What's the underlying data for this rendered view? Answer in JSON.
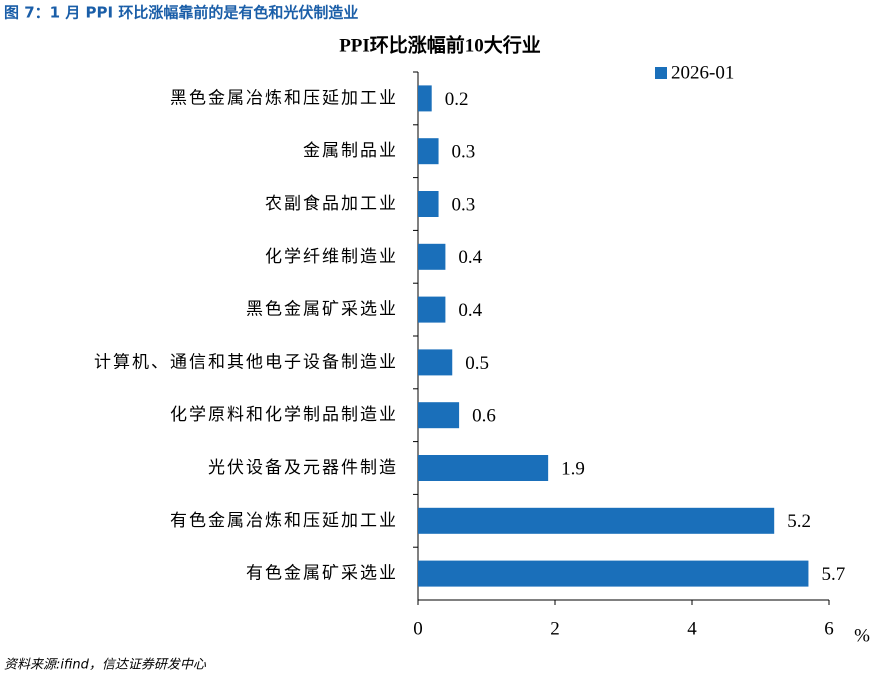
{
  "caption": "图 7：1 月 PPI 环比涨幅靠前的是有色和光伏制造业",
  "source": "资料来源:ifind，信达证券研发中心",
  "chart_data": {
    "type": "hbar",
    "title": "PPI环比涨幅前10大行业",
    "categories": [
      "黑色金属冶炼和压延加工业",
      "金属制品业",
      "农副食品加工业",
      "化学纤维制造业",
      "黑色金属矿采选业",
      "计算机、通信和其他电子设备制造业",
      "化学原料和化学制品制造业",
      "光伏设备及元器件制造",
      "有色金属冶炼和压延加工业",
      "有色金属矿采选业"
    ],
    "series": [
      {
        "name": "2026-01",
        "color": "#1a6fba",
        "values": [
          0.2,
          0.3,
          0.3,
          0.4,
          0.4,
          0.5,
          0.6,
          1.9,
          5.2,
          5.7
        ]
      }
    ],
    "xlim": [
      0,
      6
    ],
    "xticks": [
      0,
      2,
      4,
      6
    ],
    "xlabel": "%",
    "legend": "top-right"
  }
}
